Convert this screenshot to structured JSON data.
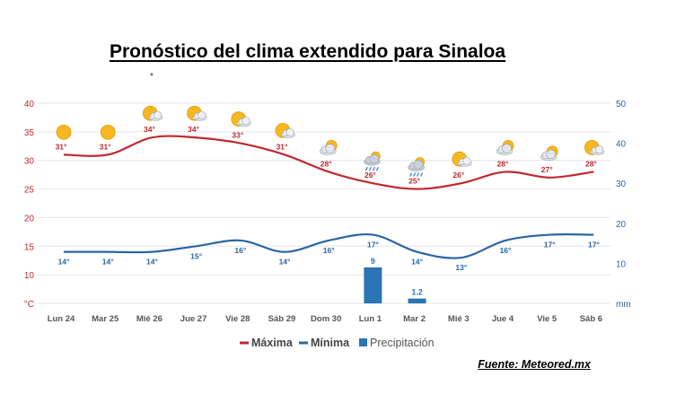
{
  "title": "Pronóstico del clima extendido para Sinaloa",
  "source": "Fuente: Meteored.mx",
  "stray_mark": "*",
  "colors": {
    "max": "#c0282d",
    "min": "#2b65a3",
    "precip": "#2b74b5",
    "left_axis": "#c0282d",
    "right_axis": "#2b65a3",
    "grid": "#e6e6e6"
  },
  "chart_data": {
    "type": "line",
    "categories": [
      "Lun 24",
      "Mar 25",
      "Mié 26",
      "Jue 27",
      "Vie 28",
      "Sáb 29",
      "Dom 30",
      "Lun 1",
      "Mar 2",
      "Mié 3",
      "Jue 4",
      "Vie 5",
      "Sáb 6"
    ],
    "series": [
      {
        "name": "Máxima",
        "axis": "left",
        "values": [
          31,
          31,
          34,
          34,
          33,
          31,
          28,
          26,
          25,
          26,
          28,
          27,
          28
        ],
        "labels": [
          "31°",
          "31°",
          "34°",
          "34°",
          "33°",
          "31°",
          "28°",
          "26°",
          "25°",
          "26°",
          "28°",
          "27°",
          "28°"
        ]
      },
      {
        "name": "Mínima",
        "axis": "left",
        "values": [
          14,
          14,
          14,
          15,
          16,
          14,
          16,
          17,
          14,
          13,
          16,
          17,
          17
        ],
        "labels": [
          "14°",
          "14°",
          "14°",
          "15°",
          "16°",
          "14°",
          "16°",
          "17°",
          "14°",
          "13°",
          "16°",
          "17°",
          "17°"
        ]
      },
      {
        "name": "Precipitación",
        "axis": "right",
        "type": "bar",
        "values": [
          0,
          0,
          0,
          0,
          0,
          0,
          0,
          9,
          1.2,
          0,
          0,
          0,
          0
        ],
        "labels": [
          "",
          "",
          "",
          "",
          "",
          "",
          "",
          "9",
          "1.2",
          "",
          "",
          "",
          ""
        ]
      }
    ],
    "weather_icons": [
      "sun",
      "sun",
      "sun-cloud",
      "sun-cloud",
      "sun-cloud",
      "sun-cloud",
      "cloud-sun",
      "cloud-rain",
      "cloud-rain",
      "sun-cloud",
      "cloud-sun",
      "cloud-sun",
      "sun-cloud"
    ],
    "y_left": {
      "ticks": [
        "°C",
        "10",
        "15",
        "20",
        "25",
        "30",
        "35",
        "40"
      ],
      "tick_values": [
        5,
        10,
        15,
        20,
        25,
        30,
        35,
        40
      ],
      "ylim": [
        5,
        40
      ]
    },
    "y_right": {
      "ticks": [
        "mm",
        "10",
        "20",
        "30",
        "40",
        "50"
      ],
      "tick_values": [
        0,
        10,
        20,
        30,
        40,
        50
      ],
      "ylim": [
        0,
        50
      ]
    },
    "legend": [
      "Máxima",
      "Mínima",
      "Precipitación"
    ],
    "legend_position": "bottom",
    "grid": true
  }
}
